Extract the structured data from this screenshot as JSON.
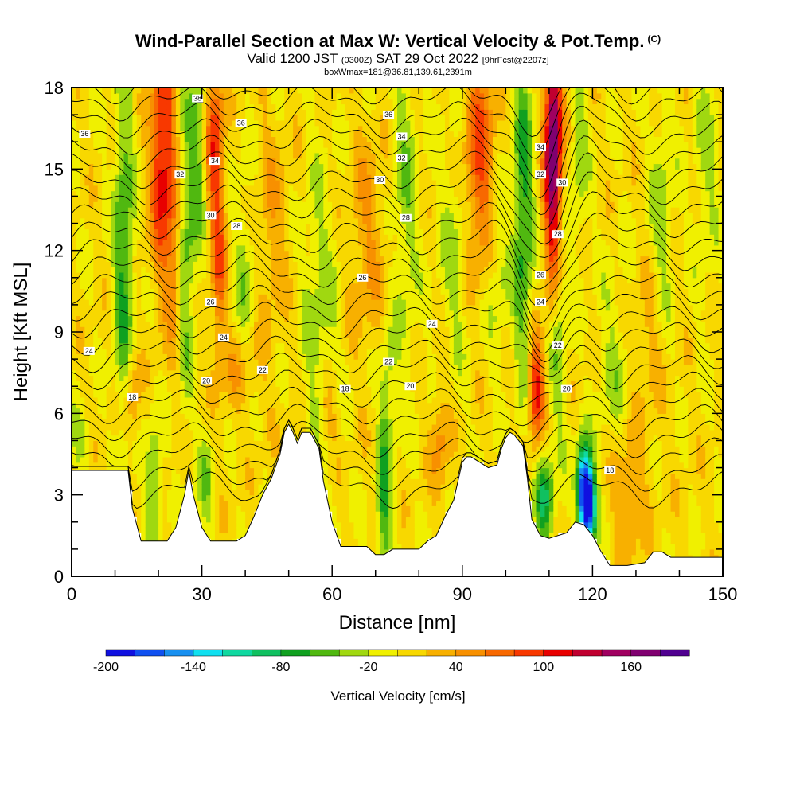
{
  "title": {
    "main": "Wind-Parallel Section at Max W: Vertical Velocity & Pot.Temp.",
    "copyright": "(C)",
    "valid_prefix": "Valid 1200 JST",
    "valid_utc": "(0300Z)",
    "valid_date": "SAT 29 Oct 2022",
    "forecast": "[9hrFcst@2207z]",
    "box_info": "boxWmax=181@36.81,139.61,2391m"
  },
  "chart_data": {
    "type": "heatmap",
    "title": "Wind-Parallel Section at Max W: Vertical Velocity & Pot.Temp.",
    "xlabel": "Distance [nm]",
    "ylabel": "Height [Kft MSL]",
    "xlim": [
      0,
      150
    ],
    "ylim": [
      0,
      18
    ],
    "x_ticks": [
      "0",
      "30",
      "60",
      "90",
      "120",
      "150"
    ],
    "y_ticks": [
      "0",
      "3",
      "6",
      "9",
      "12",
      "15",
      "18"
    ],
    "colorbar": {
      "title": "Vertical Velocity [cm/s]",
      "levels": [
        -200,
        -180,
        -160,
        -140,
        -120,
        -100,
        -80,
        -60,
        -40,
        -20,
        0,
        20,
        40,
        60,
        80,
        100,
        120,
        140,
        160,
        180
      ],
      "tick_labels": [
        "-200",
        "-140",
        "-80",
        "-20",
        "40",
        "100",
        "160"
      ],
      "colors": [
        "#1010e0",
        "#1050f0",
        "#1890f0",
        "#10e0f0",
        "#10d8a0",
        "#10c060",
        "#10a020",
        "#50b810",
        "#a0d810",
        "#f0f000",
        "#f8d800",
        "#f8b000",
        "#f89000",
        "#f86800",
        "#f83800",
        "#e80000",
        "#c00030",
        "#a00060",
        "#800070",
        "#500090"
      ]
    },
    "terrain": [
      [
        0,
        3.9
      ],
      [
        2,
        3.9
      ],
      [
        5,
        3.9
      ],
      [
        8,
        3.9
      ],
      [
        11,
        3.9
      ],
      [
        13,
        3.9
      ],
      [
        14,
        2.5
      ],
      [
        16,
        1.3
      ],
      [
        18,
        1.3
      ],
      [
        20,
        1.3
      ],
      [
        22,
        1.3
      ],
      [
        24,
        1.8
      ],
      [
        26,
        3.0
      ],
      [
        27,
        3.9
      ],
      [
        28,
        3.0
      ],
      [
        30,
        1.8
      ],
      [
        32,
        1.3
      ],
      [
        34,
        1.3
      ],
      [
        36,
        1.3
      ],
      [
        38,
        1.3
      ],
      [
        40,
        1.5
      ],
      [
        42,
        2.2
      ],
      [
        44,
        3.0
      ],
      [
        46,
        3.6
      ],
      [
        48,
        4.5
      ],
      [
        49,
        5.3
      ],
      [
        50,
        5.6
      ],
      [
        51,
        5.3
      ],
      [
        52,
        4.9
      ],
      [
        53,
        5.3
      ],
      [
        55,
        5.3
      ],
      [
        57,
        4.7
      ],
      [
        58,
        3.5
      ],
      [
        60,
        2.0
      ],
      [
        62,
        1.1
      ],
      [
        64,
        1.1
      ],
      [
        66,
        1.1
      ],
      [
        68,
        1.1
      ],
      [
        70,
        0.8
      ],
      [
        72,
        0.8
      ],
      [
        74,
        1.0
      ],
      [
        76,
        1.0
      ],
      [
        78,
        1.0
      ],
      [
        80,
        1.0
      ],
      [
        82,
        1.3
      ],
      [
        84,
        1.5
      ],
      [
        86,
        2.2
      ],
      [
        88,
        2.8
      ],
      [
        89,
        3.5
      ],
      [
        90,
        4.2
      ],
      [
        91,
        4.4
      ],
      [
        92,
        4.4
      ],
      [
        94,
        4.2
      ],
      [
        96,
        4.0
      ],
      [
        98,
        4.1
      ],
      [
        99,
        4.7
      ],
      [
        100,
        5.1
      ],
      [
        101,
        5.3
      ],
      [
        102,
        5.2
      ],
      [
        104,
        4.8
      ],
      [
        105,
        3.6
      ],
      [
        106,
        2.1
      ],
      [
        108,
        1.5
      ],
      [
        110,
        1.4
      ],
      [
        112,
        1.5
      ],
      [
        114,
        1.6
      ],
      [
        116,
        2.0
      ],
      [
        118,
        1.9
      ],
      [
        120,
        1.5
      ],
      [
        121,
        1.2
      ],
      [
        122,
        0.9
      ],
      [
        124,
        0.4
      ],
      [
        128,
        0.4
      ],
      [
        132,
        0.5
      ],
      [
        134,
        0.9
      ],
      [
        136,
        0.9
      ],
      [
        138,
        0.7
      ],
      [
        142,
        0.7
      ],
      [
        150,
        0.7
      ]
    ],
    "w_features": [
      {
        "x": 12,
        "y": 12,
        "sx": 1.6,
        "sy": 4.5,
        "w": -70
      },
      {
        "x": 14,
        "y": 6.5,
        "sx": 1.2,
        "sy": 1.2,
        "w": 45
      },
      {
        "x": 19,
        "y": 3.5,
        "sx": 1.3,
        "sy": 1.6,
        "w": -55
      },
      {
        "x": 21,
        "y": 15.5,
        "sx": 2.0,
        "sy": 3.0,
        "w": 110
      },
      {
        "x": 24,
        "y": 11.5,
        "sx": 1.5,
        "sy": 2.5,
        "w": 50
      },
      {
        "x": 26,
        "y": 12,
        "sx": 1.5,
        "sy": 4.0,
        "w": -60
      },
      {
        "x": 29,
        "y": 15.5,
        "sx": 1.4,
        "sy": 3.0,
        "w": -50
      },
      {
        "x": 33,
        "y": 16,
        "sx": 1.4,
        "sy": 2.5,
        "w": 90
      },
      {
        "x": 34,
        "y": 11,
        "sx": 1.2,
        "sy": 2.0,
        "w": 60
      },
      {
        "x": 31,
        "y": 3.6,
        "sx": 1.2,
        "sy": 1.4,
        "w": -40
      },
      {
        "x": 39,
        "y": 7.5,
        "sx": 3.5,
        "sy": 1.2,
        "w": 35
      },
      {
        "x": 40,
        "y": 11,
        "sx": 2.0,
        "sy": 3.0,
        "w": -35
      },
      {
        "x": 46,
        "y": 13,
        "sx": 3.0,
        "sy": 3.0,
        "w": 30
      },
      {
        "x": 57,
        "y": 9.5,
        "sx": 3.0,
        "sy": 4.0,
        "w": -35
      },
      {
        "x": 59,
        "y": 6.0,
        "sx": 1.5,
        "sy": 1.0,
        "w": 40
      },
      {
        "x": 68,
        "y": 12.5,
        "sx": 3.0,
        "sy": 3.0,
        "w": 35
      },
      {
        "x": 72,
        "y": 2.6,
        "sx": 1.2,
        "sy": 2.5,
        "w": -70
      },
      {
        "x": 73,
        "y": 7.0,
        "sx": 1.6,
        "sy": 1.5,
        "w": -35
      },
      {
        "x": 77,
        "y": 14,
        "sx": 2.0,
        "sy": 4.0,
        "w": -40
      },
      {
        "x": 85,
        "y": 5.0,
        "sx": 1.5,
        "sy": 1.5,
        "w": 45
      },
      {
        "x": 88,
        "y": 12,
        "sx": 2.5,
        "sy": 3.5,
        "w": -30
      },
      {
        "x": 94,
        "y": 15.5,
        "sx": 2.5,
        "sy": 3.0,
        "w": 80
      },
      {
        "x": 98,
        "y": 11,
        "sx": 2.0,
        "sy": 2.5,
        "w": -30
      },
      {
        "x": 104,
        "y": 13.5,
        "sx": 1.6,
        "sy": 4.5,
        "w": -75
      },
      {
        "x": 107,
        "y": 6.9,
        "sx": 1.3,
        "sy": 1.4,
        "w": 110
      },
      {
        "x": 109,
        "y": 2.9,
        "sx": 1.5,
        "sy": 1.2,
        "w": -85
      },
      {
        "x": 111,
        "y": 16.5,
        "sx": 1.4,
        "sy": 2.5,
        "w": 160
      },
      {
        "x": 111,
        "y": 12.5,
        "sx": 1.4,
        "sy": 2.5,
        "w": 80
      },
      {
        "x": 112,
        "y": 9.5,
        "sx": 1.5,
        "sy": 3.0,
        "w": -55
      },
      {
        "x": 118,
        "y": 3.6,
        "sx": 1.2,
        "sy": 1.0,
        "w": -140
      },
      {
        "x": 119,
        "y": 2.5,
        "sx": 1.3,
        "sy": 1.0,
        "w": -200
      },
      {
        "x": 117,
        "y": 16,
        "sx": 1.5,
        "sy": 3.0,
        "w": -35
      },
      {
        "x": 125,
        "y": 7.5,
        "sx": 2.5,
        "sy": 2.5,
        "w": -30
      },
      {
        "x": 128,
        "y": 3.0,
        "sx": 3.0,
        "sy": 1.8,
        "w": 40
      },
      {
        "x": 136,
        "y": 13.5,
        "sx": 2.0,
        "sy": 3.0,
        "w": -35
      },
      {
        "x": 133,
        "y": 8.5,
        "sx": 2.5,
        "sy": 2.0,
        "w": 25
      },
      {
        "x": 146,
        "y": 15,
        "sx": 2.0,
        "sy": 3.0,
        "w": -30
      },
      {
        "x": 2,
        "y": 5.0,
        "sx": 1.5,
        "sy": 0.8,
        "w": -35
      }
    ],
    "theta_contour_labels": [
      {
        "x": 3,
        "y": 16.3,
        "text": "36"
      },
      {
        "x": 29,
        "y": 17.6,
        "text": "38"
      },
      {
        "x": 39,
        "y": 16.7,
        "text": "36"
      },
      {
        "x": 33,
        "y": 15.3,
        "text": "34"
      },
      {
        "x": 25,
        "y": 14.8,
        "text": "32"
      },
      {
        "x": 32,
        "y": 13.3,
        "text": "30"
      },
      {
        "x": 38,
        "y": 12.9,
        "text": "28"
      },
      {
        "x": 32,
        "y": 10.1,
        "text": "26"
      },
      {
        "x": 35,
        "y": 8.8,
        "text": "24"
      },
      {
        "x": 4,
        "y": 8.3,
        "text": "24"
      },
      {
        "x": 14,
        "y": 6.6,
        "text": "18"
      },
      {
        "x": 31,
        "y": 7.2,
        "text": "20"
      },
      {
        "x": 44,
        "y": 7.6,
        "text": "22"
      },
      {
        "x": 63,
        "y": 6.9,
        "text": "18"
      },
      {
        "x": 73,
        "y": 7.9,
        "text": "22"
      },
      {
        "x": 78,
        "y": 7.0,
        "text": "20"
      },
      {
        "x": 83,
        "y": 9.3,
        "text": "24"
      },
      {
        "x": 67,
        "y": 11.0,
        "text": "26"
      },
      {
        "x": 77,
        "y": 13.2,
        "text": "28"
      },
      {
        "x": 71,
        "y": 14.6,
        "text": "30"
      },
      {
        "x": 76,
        "y": 15.4,
        "text": "32"
      },
      {
        "x": 76,
        "y": 16.2,
        "text": "34"
      },
      {
        "x": 73,
        "y": 17.0,
        "text": "36"
      },
      {
        "x": 108,
        "y": 15.8,
        "text": "34"
      },
      {
        "x": 108,
        "y": 14.8,
        "text": "32"
      },
      {
        "x": 113,
        "y": 14.5,
        "text": "30"
      },
      {
        "x": 112,
        "y": 12.6,
        "text": "28"
      },
      {
        "x": 108,
        "y": 11.1,
        "text": "26"
      },
      {
        "x": 108,
        "y": 10.1,
        "text": "24"
      },
      {
        "x": 112,
        "y": 8.5,
        "text": "22"
      },
      {
        "x": 114,
        "y": 6.9,
        "text": "20"
      },
      {
        "x": 124,
        "y": 3.9,
        "text": "18"
      }
    ]
  }
}
